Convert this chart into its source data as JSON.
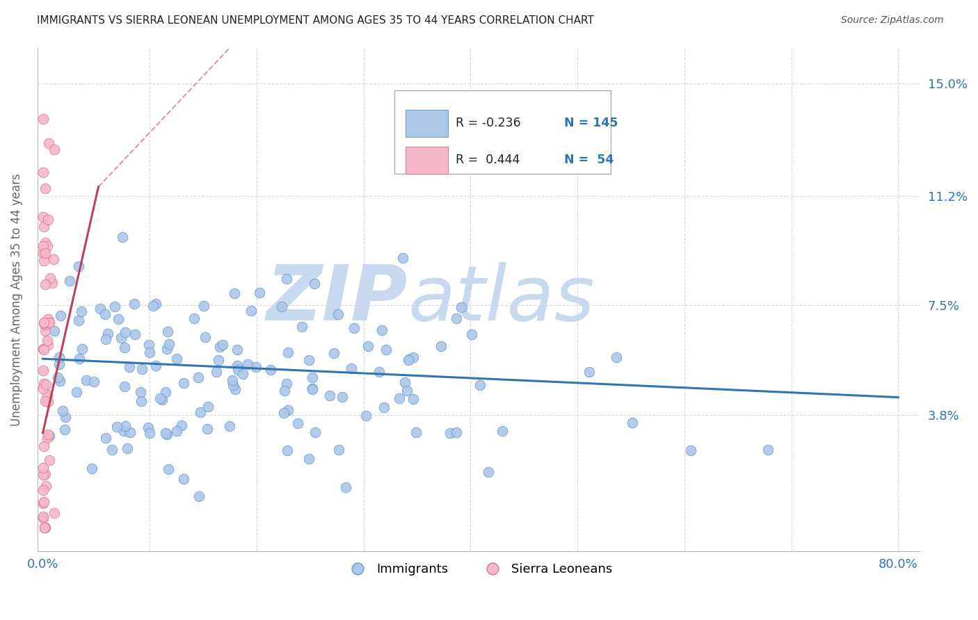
{
  "title": "IMMIGRANTS VS SIERRA LEONEAN UNEMPLOYMENT AMONG AGES 35 TO 44 YEARS CORRELATION CHART",
  "source": "Source: ZipAtlas.com",
  "ylabel": "Unemployment Among Ages 35 to 44 years",
  "blue_R": -0.236,
  "blue_N": 145,
  "pink_R": 0.444,
  "pink_N": 54,
  "blue_color": "#aec6e8",
  "blue_edge_color": "#5b9bd5",
  "blue_line_color": "#2e75b6",
  "pink_color": "#f4b8c8",
  "pink_edge_color": "#e07090",
  "pink_line_color": "#c0405a",
  "watermark_zip_color": "#c8d8ee",
  "watermark_atlas_color": "#c8d8ee",
  "background": "#ffffff",
  "grid_color": "#d8d8d8",
  "title_color": "#222222",
  "source_color": "#555555",
  "axis_label_color": "#2e75b6",
  "tick_label_color": "#2e75b6",
  "y_label_color": "#666666",
  "legend_border_color": "#aaaaaa",
  "legend_r_color": "#222222",
  "legend_n_color": "#2e75b6",
  "y_ticks": [
    0.038,
    0.075,
    0.112,
    0.15
  ],
  "y_tick_labels": [
    "3.8%",
    "7.5%",
    "11.2%",
    "15.0%"
  ],
  "x_ticks": [
    0.0,
    0.1,
    0.2,
    0.3,
    0.4,
    0.5,
    0.6,
    0.7,
    0.8
  ],
  "x_tick_labels": [
    "0.0%",
    "",
    "",
    "",
    "",
    "",
    "",
    "",
    "80.0%"
  ],
  "ylim": [
    -0.008,
    0.162
  ],
  "xlim": [
    -0.005,
    0.82
  ]
}
